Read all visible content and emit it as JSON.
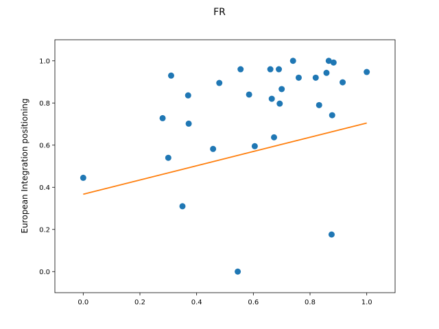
{
  "chart_data": {
    "type": "scatter",
    "title": "FR",
    "xlabel": "",
    "ylabel": "European Integration positioning",
    "xlim": [
      -0.1,
      1.1
    ],
    "ylim": [
      -0.1,
      1.1
    ],
    "xticks": [
      0.0,
      0.2,
      0.4,
      0.6,
      0.8,
      1.0
    ],
    "yticks": [
      0.0,
      0.2,
      0.4,
      0.6,
      0.8,
      1.0
    ],
    "xtick_labels": [
      "0.0",
      "0.2",
      "0.4",
      "0.6",
      "0.8",
      "1.0"
    ],
    "ytick_labels": [
      "0.0",
      "0.2",
      "0.4",
      "0.6",
      "0.8",
      "1.0"
    ],
    "grid": false,
    "series": [
      {
        "type": "scatter",
        "color": "#1f77b4",
        "points": [
          [
            0.0,
            0.445
          ],
          [
            0.28,
            0.728
          ],
          [
            0.3,
            0.54
          ],
          [
            0.31,
            0.93
          ],
          [
            0.35,
            0.31
          ],
          [
            0.37,
            0.836
          ],
          [
            0.372,
            0.702
          ],
          [
            0.458,
            0.582
          ],
          [
            0.48,
            0.895
          ],
          [
            0.545,
            0.0
          ],
          [
            0.555,
            0.96
          ],
          [
            0.585,
            0.84
          ],
          [
            0.605,
            0.595
          ],
          [
            0.66,
            0.96
          ],
          [
            0.665,
            0.82
          ],
          [
            0.673,
            0.637
          ],
          [
            0.69,
            0.96
          ],
          [
            0.693,
            0.797
          ],
          [
            0.7,
            0.866
          ],
          [
            0.74,
            1.0
          ],
          [
            0.76,
            0.92
          ],
          [
            0.82,
            0.92
          ],
          [
            0.832,
            0.79
          ],
          [
            0.858,
            0.943
          ],
          [
            0.866,
            1.0
          ],
          [
            0.876,
            0.176
          ],
          [
            0.878,
            0.742
          ],
          [
            0.883,
            0.992
          ],
          [
            0.915,
            0.898
          ],
          [
            1.0,
            0.947
          ]
        ]
      },
      {
        "type": "line",
        "color": "#ff7f0e",
        "points": [
          [
            0.0,
            0.367
          ],
          [
            1.0,
            0.705
          ]
        ]
      }
    ]
  }
}
